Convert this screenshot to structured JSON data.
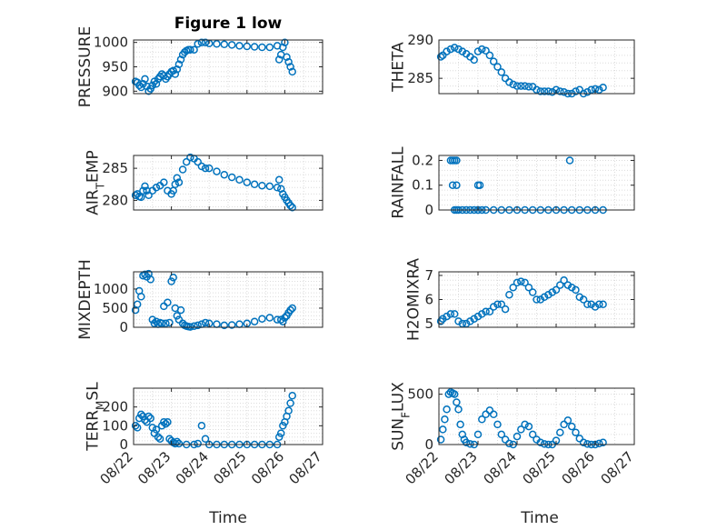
{
  "figure": {
    "title": "Figure 1 low",
    "xlabel": "Time",
    "x_ticks": [
      "08/22",
      "08/23",
      "08/24",
      "08/25",
      "08/26",
      "08/27"
    ],
    "marker_color": "#0072BD",
    "grid": "dotted major and minor"
  },
  "chart_data": [
    {
      "type": "scatter",
      "ylabel": "PRESSURE",
      "xlim": [
        0,
        5
      ],
      "ylim": [
        895,
        1005
      ],
      "yticks": [
        {
          "v": 900,
          "label": "900"
        },
        {
          "v": 950,
          "label": "950"
        },
        {
          "v": 1000,
          "label": "1000"
        }
      ],
      "x": [
        0.05,
        0.1,
        0.15,
        0.2,
        0.25,
        0.3,
        0.35,
        0.4,
        0.45,
        0.5,
        0.55,
        0.6,
        0.65,
        0.7,
        0.75,
        0.8,
        0.85,
        0.9,
        0.95,
        1.0,
        1.05,
        1.1,
        1.15,
        1.2,
        1.25,
        1.3,
        1.35,
        1.4,
        1.45,
        1.5,
        1.6,
        1.7,
        1.8,
        1.9,
        2.0,
        2.2,
        2.4,
        2.6,
        2.8,
        3.0,
        3.2,
        3.4,
        3.6,
        3.8,
        3.85,
        3.9,
        3.95,
        4.0,
        4.05,
        4.1,
        4.15,
        4.2
      ],
      "y": [
        920,
        918,
        912,
        908,
        915,
        925,
        910,
        900,
        905,
        912,
        920,
        915,
        925,
        930,
        935,
        932,
        925,
        930,
        935,
        940,
        942,
        935,
        945,
        955,
        965,
        975,
        980,
        983,
        985,
        985,
        985,
        997,
        1000,
        1000,
        998,
        997,
        996,
        995,
        993,
        992,
        991,
        990,
        990,
        993,
        965,
        975,
        990,
        1000,
        970,
        960,
        950,
        940
      ]
    },
    {
      "type": "scatter",
      "ylabel": "THETA",
      "xlim": [
        0,
        5
      ],
      "ylim": [
        283,
        290
      ],
      "yticks": [
        {
          "v": 285,
          "label": "285"
        },
        {
          "v": 290,
          "label": "290"
        }
      ],
      "x": [
        0.05,
        0.1,
        0.2,
        0.3,
        0.4,
        0.5,
        0.6,
        0.7,
        0.8,
        0.9,
        1.0,
        1.1,
        1.2,
        1.3,
        1.4,
        1.5,
        1.6,
        1.7,
        1.8,
        1.9,
        2.0,
        2.1,
        2.2,
        2.3,
        2.4,
        2.5,
        2.6,
        2.7,
        2.8,
        2.9,
        3.0,
        3.1,
        3.2,
        3.3,
        3.4,
        3.5,
        3.6,
        3.7,
        3.8,
        3.9,
        4.0,
        4.1,
        4.2
      ],
      "y": [
        287.8,
        288.0,
        288.5,
        288.8,
        289.0,
        288.8,
        288.5,
        288.2,
        287.8,
        287.4,
        288.5,
        288.8,
        288.6,
        288.0,
        287.2,
        286.5,
        285.8,
        285.0,
        284.5,
        284.2,
        284.0,
        284.0,
        284.0,
        283.9,
        283.9,
        283.5,
        283.3,
        283.3,
        283.3,
        283.2,
        283.5,
        283.3,
        283.2,
        283.0,
        283.0,
        283.3,
        283.5,
        283.0,
        283.2,
        283.5,
        283.6,
        283.5,
        283.8
      ]
    },
    {
      "type": "scatter",
      "ylabel": "AIR_TEMP",
      "xlim": [
        0,
        5
      ],
      "ylim": [
        278.5,
        287
      ],
      "yticks": [
        {
          "v": 280,
          "label": "280"
        },
        {
          "v": 285,
          "label": "285"
        }
      ],
      "x": [
        0.05,
        0.1,
        0.15,
        0.2,
        0.25,
        0.3,
        0.35,
        0.4,
        0.5,
        0.6,
        0.7,
        0.8,
        0.9,
        1.0,
        1.05,
        1.1,
        1.15,
        1.2,
        1.3,
        1.4,
        1.5,
        1.6,
        1.7,
        1.8,
        1.9,
        2.0,
        2.2,
        2.4,
        2.6,
        2.8,
        3.0,
        3.2,
        3.4,
        3.6,
        3.8,
        3.85,
        3.9,
        3.95,
        4.0,
        4.05,
        4.1,
        4.15,
        4.2
      ],
      "y": [
        280.8,
        281.0,
        280.6,
        280.5,
        281.5,
        282.2,
        281.5,
        280.8,
        281.5,
        282.0,
        282.3,
        282.8,
        281.5,
        281.0,
        281.5,
        282.5,
        283.5,
        282.8,
        284.8,
        286.0,
        286.7,
        286.5,
        286.0,
        285.3,
        285.0,
        285.0,
        284.5,
        284.0,
        283.6,
        283.2,
        282.8,
        282.5,
        282.3,
        282.2,
        282.0,
        283.2,
        281.8,
        281.0,
        280.5,
        280.0,
        279.6,
        279.2,
        278.9
      ]
    },
    {
      "type": "scatter",
      "ylabel": "RAINFALL",
      "xlim": [
        0,
        5
      ],
      "ylim": [
        0,
        0.22
      ],
      "yticks": [
        {
          "v": 0,
          "label": "0"
        },
        {
          "v": 0.1,
          "label": "0.1"
        },
        {
          "v": 0.2,
          "label": "0.2"
        }
      ],
      "x": [
        0.3,
        0.35,
        0.4,
        0.45,
        0.35,
        0.45,
        0.4,
        0.45,
        1.0,
        1.05,
        1.1,
        1.0,
        3.35,
        0.5,
        0.6,
        0.7,
        0.8,
        0.9,
        1.0,
        1.2,
        1.4,
        1.6,
        1.8,
        2.0,
        2.2,
        2.4,
        2.6,
        2.8,
        3.0,
        3.2,
        3.4,
        3.6,
        3.8,
        4.0,
        4.2
      ],
      "y": [
        0.2,
        0.2,
        0.2,
        0.2,
        0.1,
        0.1,
        0,
        0,
        0.1,
        0.1,
        0,
        0,
        0.2,
        0,
        0,
        0,
        0,
        0,
        0,
        0,
        0,
        0,
        0,
        0,
        0,
        0,
        0,
        0,
        0,
        0,
        0,
        0,
        0,
        0,
        0
      ]
    },
    {
      "type": "scatter",
      "ylabel": "MIXDEPTH",
      "xlim": [
        0,
        5
      ],
      "ylim": [
        0,
        1450
      ],
      "yticks": [
        {
          "v": 0,
          "label": "0"
        },
        {
          "v": 500,
          "label": "500"
        },
        {
          "v": 1000,
          "label": "1000"
        }
      ],
      "x": [
        0.05,
        0.1,
        0.15,
        0.2,
        0.25,
        0.3,
        0.35,
        0.4,
        0.45,
        0.5,
        0.55,
        0.6,
        0.65,
        0.7,
        0.75,
        0.8,
        0.85,
        0.9,
        0.95,
        1.0,
        1.05,
        1.1,
        1.15,
        1.2,
        1.25,
        1.3,
        1.35,
        1.4,
        1.45,
        1.5,
        1.6,
        1.7,
        1.8,
        1.9,
        2.0,
        2.2,
        2.4,
        2.6,
        2.8,
        3.0,
        3.2,
        3.4,
        3.6,
        3.8,
        3.9,
        3.95,
        4.0,
        4.05,
        4.1,
        4.15,
        4.2
      ],
      "y": [
        450,
        600,
        950,
        800,
        1350,
        1380,
        1320,
        1400,
        1250,
        200,
        100,
        150,
        80,
        120,
        100,
        550,
        100,
        650,
        120,
        1200,
        1300,
        500,
        300,
        200,
        450,
        100,
        50,
        30,
        20,
        10,
        30,
        50,
        80,
        120,
        100,
        80,
        50,
        60,
        80,
        100,
        150,
        220,
        250,
        200,
        200,
        150,
        250,
        300,
        380,
        450,
        500
      ]
    },
    {
      "type": "scatter",
      "ylabel": "H2OMIXRA",
      "xlim": [
        0,
        5
      ],
      "ylim": [
        4.85,
        7.15
      ],
      "yticks": [
        {
          "v": 5,
          "label": "5"
        },
        {
          "v": 6,
          "label": "6"
        },
        {
          "v": 7,
          "label": "7"
        }
      ],
      "x": [
        0.05,
        0.1,
        0.2,
        0.3,
        0.4,
        0.5,
        0.6,
        0.7,
        0.8,
        0.9,
        1.0,
        1.1,
        1.2,
        1.3,
        1.4,
        1.5,
        1.6,
        1.7,
        1.8,
        1.9,
        2.0,
        2.1,
        2.2,
        2.3,
        2.4,
        2.5,
        2.6,
        2.7,
        2.8,
        2.9,
        3.0,
        3.1,
        3.2,
        3.3,
        3.4,
        3.5,
        3.6,
        3.7,
        3.8,
        3.9,
        4.0,
        4.1,
        4.2
      ],
      "y": [
        5.1,
        5.2,
        5.3,
        5.4,
        5.4,
        5.1,
        5.0,
        5.0,
        5.1,
        5.2,
        5.3,
        5.4,
        5.5,
        5.5,
        5.7,
        5.8,
        5.8,
        5.6,
        6.2,
        6.5,
        6.7,
        6.75,
        6.7,
        6.5,
        6.3,
        6.0,
        6.0,
        6.1,
        6.2,
        6.3,
        6.4,
        6.6,
        6.8,
        6.6,
        6.5,
        6.4,
        6.1,
        6.0,
        5.8,
        5.8,
        5.7,
        5.8,
        5.8
      ]
    },
    {
      "type": "scatter",
      "ylabel": "TERR_MSL",
      "xlim": [
        0,
        5
      ],
      "ylim": [
        0,
        300
      ],
      "yticks": [
        {
          "v": 0,
          "label": "0"
        },
        {
          "v": 100,
          "label": "100"
        },
        {
          "v": 200,
          "label": "200"
        }
      ],
      "x": [
        0.05,
        0.1,
        0.15,
        0.2,
        0.25,
        0.3,
        0.35,
        0.4,
        0.45,
        0.5,
        0.55,
        0.6,
        0.65,
        0.7,
        0.75,
        0.8,
        0.85,
        0.9,
        0.95,
        1.0,
        1.05,
        1.1,
        1.15,
        1.2,
        1.4,
        1.6,
        1.7,
        1.8,
        1.9,
        2.0,
        2.2,
        2.4,
        2.6,
        2.8,
        3.0,
        3.2,
        3.4,
        3.6,
        3.8,
        3.85,
        3.9,
        3.95,
        4.0,
        4.05,
        4.1,
        4.15,
        4.2
      ],
      "y": [
        100,
        90,
        140,
        160,
        150,
        130,
        120,
        150,
        140,
        90,
        60,
        80,
        40,
        30,
        100,
        120,
        110,
        120,
        30,
        20,
        10,
        5,
        15,
        5,
        0,
        0,
        5,
        100,
        30,
        0,
        0,
        0,
        0,
        0,
        0,
        0,
        0,
        0,
        0,
        40,
        60,
        100,
        120,
        150,
        180,
        220,
        260
      ]
    },
    {
      "type": "scatter",
      "ylabel": "SUN_FLUX",
      "xlim": [
        0,
        5
      ],
      "ylim": [
        0,
        560
      ],
      "yticks": [
        {
          "v": 0,
          "label": "0"
        },
        {
          "v": 500,
          "label": "500"
        }
      ],
      "x": [
        0.05,
        0.1,
        0.15,
        0.2,
        0.25,
        0.3,
        0.35,
        0.4,
        0.45,
        0.5,
        0.55,
        0.6,
        0.65,
        0.7,
        0.8,
        0.9,
        1.0,
        1.1,
        1.2,
        1.3,
        1.4,
        1.5,
        1.6,
        1.7,
        1.8,
        1.9,
        2.0,
        2.1,
        2.2,
        2.3,
        2.4,
        2.5,
        2.6,
        2.7,
        2.8,
        2.9,
        3.0,
        3.1,
        3.2,
        3.3,
        3.4,
        3.5,
        3.6,
        3.7,
        3.8,
        3.9,
        4.0,
        4.1,
        4.2
      ],
      "y": [
        50,
        150,
        250,
        350,
        500,
        520,
        510,
        500,
        420,
        350,
        200,
        100,
        50,
        20,
        5,
        0,
        100,
        250,
        300,
        340,
        300,
        200,
        100,
        50,
        10,
        0,
        80,
        150,
        200,
        180,
        100,
        50,
        20,
        5,
        0,
        0,
        40,
        120,
        200,
        240,
        180,
        120,
        60,
        20,
        5,
        0,
        0,
        10,
        20
      ]
    }
  ]
}
